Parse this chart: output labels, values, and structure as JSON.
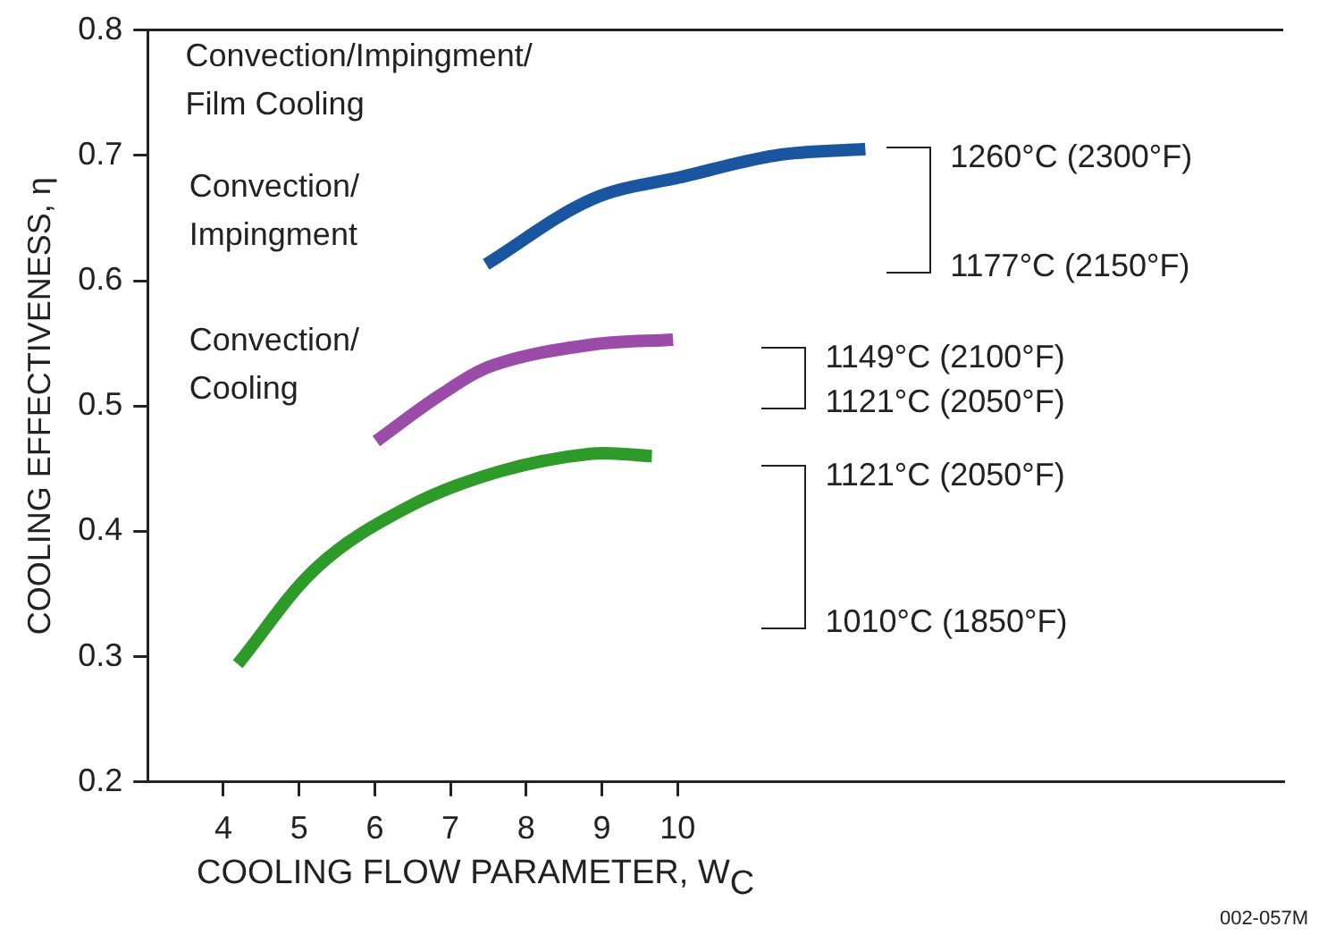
{
  "chart_data": {
    "type": "line",
    "xlabel": "COOLING FLOW PARAMETER, W$_{C}$",
    "ylabel": "COOLING EFFECTIVENESS, η",
    "xlim": [
      3,
      18
    ],
    "xticks": [
      4,
      5,
      6,
      7,
      8,
      9,
      10
    ],
    "ylim": [
      0.2,
      0.8
    ],
    "yticks": [
      0.2,
      0.3,
      0.4,
      0.5,
      0.6,
      0.7,
      0.8
    ],
    "grid": false,
    "legend": false,
    "marker": "none",
    "line_style": "solid",
    "series": [
      {
        "color": "#1a56a0",
        "x": [
          7.47,
          8.87,
          10.07,
          11.3,
          12.48
        ],
        "values": [
          0.613,
          0.665,
          0.683,
          0.7,
          0.705
        ]
      },
      {
        "color": "#9b4ca8",
        "x": [
          6.02,
          6.87,
          7.59,
          8.87,
          9.94
        ],
        "values": [
          0.472,
          0.509,
          0.533,
          0.549,
          0.553
        ]
      },
      {
        "color": "#2e9a2a",
        "x": [
          4.19,
          5.25,
          6.46,
          7.66,
          8.87,
          9.66
        ],
        "values": [
          0.294,
          0.372,
          0.42,
          0.448,
          0.462,
          0.46
        ]
      }
    ],
    "annotations": [
      "Convection/Impingment/\nFilm Cooling",
      "Convection/\nImpingment",
      "Convection/\nCooling",
      "1260°C (2300°F)",
      "1177°C (2150°F)",
      "1149°C (2100°F)",
      "1121°C (2050°F)",
      "1121°C (2050°F)",
      "1010°C (1850°F)",
      "002-057M"
    ]
  }
}
